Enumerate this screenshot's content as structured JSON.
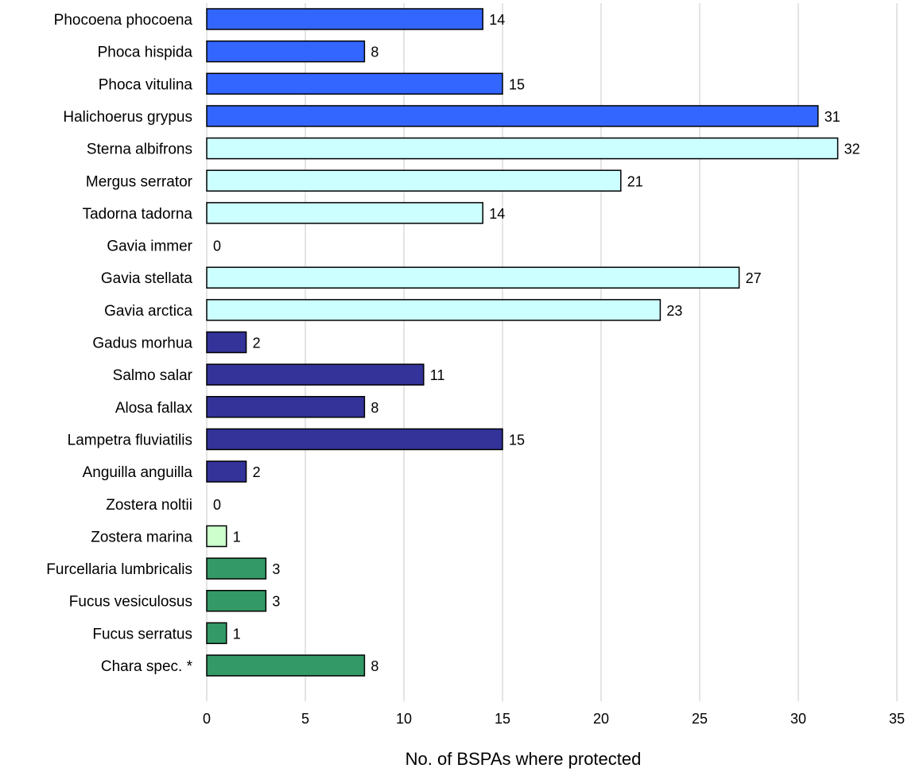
{
  "chart_data": {
    "type": "bar",
    "orientation": "horizontal",
    "categories": [
      "Phocoena phocoena",
      "Phoca hispida",
      "Phoca vitulina",
      "Halichoerus grypus",
      "Sterna albifrons",
      "Mergus serrator",
      "Tadorna tadorna",
      "Gavia immer",
      "Gavia stellata",
      "Gavia arctica",
      "Gadus morhua",
      "Salmo salar",
      "Alosa fallax",
      "Lampetra fluviatilis",
      "Anguilla anguilla",
      "Zostera noltii",
      "Zostera marina",
      "Furcellaria lumbricalis",
      "Fucus vesiculosus",
      "Fucus serratus",
      "Chara spec. *"
    ],
    "values": [
      14,
      8,
      15,
      31,
      32,
      21,
      14,
      0,
      27,
      23,
      2,
      11,
      8,
      15,
      2,
      0,
      1,
      3,
      3,
      1,
      8
    ],
    "data_labels": [
      "14",
      "8",
      "15",
      "31",
      "32",
      "21",
      "14",
      "0",
      "27",
      "23",
      "2",
      "11",
      "8",
      "15",
      "2",
      "0",
      "1",
      "3",
      "3",
      "1",
      "8"
    ],
    "bar_colors": [
      "#3366ff",
      "#3366ff",
      "#3366ff",
      "#3366ff",
      "#ccffff",
      "#ccffff",
      "#ccffff",
      "#ccffff",
      "#ccffff",
      "#ccffff",
      "#333399",
      "#333399",
      "#333399",
      "#333399",
      "#333399",
      "#ccffcc",
      "#ccffcc",
      "#339966",
      "#339966",
      "#339966",
      "#339966"
    ],
    "xlabel": "No. of BSPAs where protected",
    "ylabel": "",
    "title": "",
    "xlim": [
      0,
      35
    ],
    "xticks": [
      "0",
      "5",
      "10",
      "15",
      "20",
      "25",
      "30",
      "35"
    ],
    "grid": "vertical",
    "legend": "none"
  }
}
